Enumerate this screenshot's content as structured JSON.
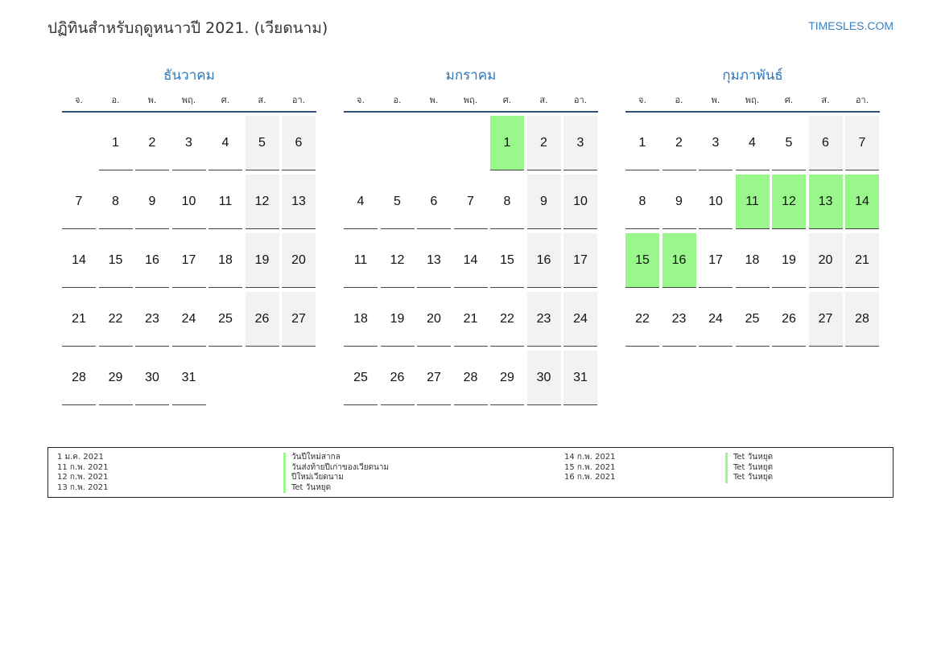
{
  "header": {
    "title": "ปฏิทินสำหรับฤดูหนาวปี 2021. (เวียดนาม)",
    "site": "TIMESLES.COM"
  },
  "dow": [
    "จ.",
    "อ.",
    "พ.",
    "พฤ.",
    "ศ.",
    "ส.",
    "อา."
  ],
  "months": [
    {
      "name": "ธันวาคม",
      "lead_blanks": 1,
      "days": 31,
      "holidays": []
    },
    {
      "name": "มกราคม",
      "lead_blanks": 4,
      "days": 31,
      "holidays": [
        1
      ]
    },
    {
      "name": "กุมภาพันธ์",
      "lead_blanks": 0,
      "days": 28,
      "holidays": [
        11,
        12,
        13,
        14,
        15,
        16
      ]
    }
  ],
  "legend": {
    "col1": [
      {
        "date": "1 ม.ค. 2021",
        "name": "วันปีใหม่สากล"
      },
      {
        "date": "11 ก.พ. 2021",
        "name": "วันส่งท้ายปีเก่าของเวียดนาม"
      },
      {
        "date": "12 ก.พ. 2021",
        "name": "ปีใหม่เวียดนาม"
      },
      {
        "date": "13 ก.พ. 2021",
        "name": "Tet วันหยุด"
      }
    ],
    "col2": [
      {
        "date": "14 ก.พ. 2021",
        "name": "Tet วันหยุด"
      },
      {
        "date": "15 ก.พ. 2021",
        "name": "Tet วันหยุด"
      },
      {
        "date": "16 ก.พ. 2021",
        "name": "Tet วันหยุด"
      }
    ]
  },
  "colors": {
    "holiday": "#9af78c",
    "weekend": "#f2f2f2",
    "month_title": "#2e76b8",
    "header_rule": "#34507a"
  }
}
